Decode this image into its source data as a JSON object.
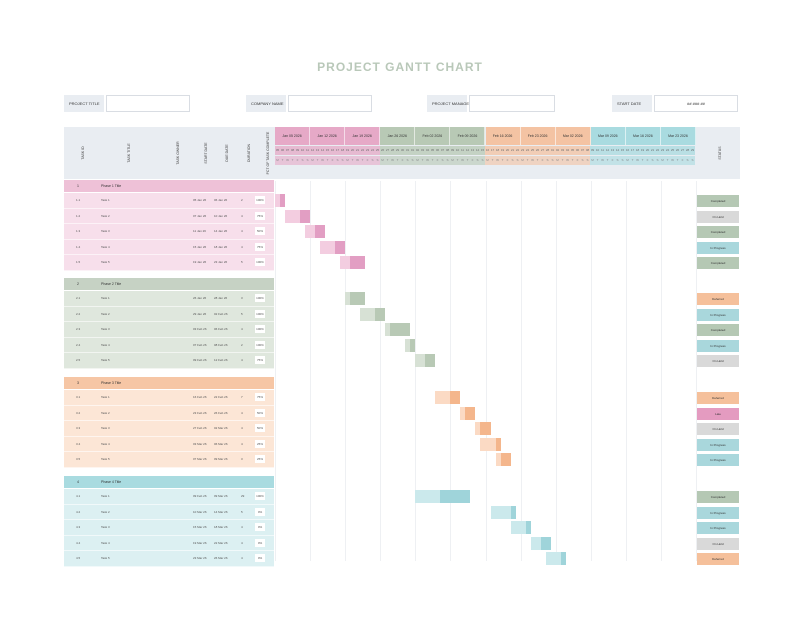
{
  "title": "PROJECT GANTT CHART",
  "info": [
    {
      "label": "PROJECT TITLE",
      "value": ""
    },
    {
      "label": "COMPANY NAME",
      "value": ""
    },
    {
      "label": "PROJECT MANAGER",
      "value": ""
    },
    {
      "label": "START DATE",
      "value": "## ### ##"
    }
  ],
  "columns": [
    "TASK ID",
    "TASK TITLE",
    "TASK OWNER",
    "START DATE",
    "DUE DATE",
    "DURATION",
    "PCT OF TASK COMPLETE"
  ],
  "status_header": "STATUS",
  "weeks": [
    {
      "label": "Jan 05 2026",
      "color": "#e6a9c7"
    },
    {
      "label": "Jan 12 2026",
      "color": "#e6a9c7"
    },
    {
      "label": "Jan 19 2026",
      "color": "#e6a9c7"
    },
    {
      "label": "Jan 26 2026",
      "color": "#b8c9b5"
    },
    {
      "label": "Feb 02 2026",
      "color": "#b8c9b5"
    },
    {
      "label": "Feb 09 2026",
      "color": "#b8c9b5"
    },
    {
      "label": "Feb 16 2026",
      "color": "#f4c3a3"
    },
    {
      "label": "Feb 23 2026",
      "color": "#f4c3a3"
    },
    {
      "label": "Mar 02 2026",
      "color": "#f4c3a3"
    },
    {
      "label": "Mar 09 2026",
      "color": "#a9dbe0"
    },
    {
      "label": "Mar 16 2026",
      "color": "#a9dbe0"
    },
    {
      "label": "Mar 23 2026",
      "color": "#a9dbe0"
    }
  ],
  "day_numbers": [
    "05",
    "06",
    "07",
    "08",
    "09",
    "10",
    "11",
    "12",
    "13",
    "14",
    "15",
    "16",
    "17",
    "18",
    "19",
    "20",
    "21",
    "22",
    "23",
    "24",
    "25",
    "26",
    "27",
    "28",
    "29",
    "30",
    "31",
    "01",
    "02",
    "03",
    "04",
    "05",
    "06",
    "07",
    "08",
    "09",
    "10",
    "11",
    "12",
    "13",
    "14",
    "15",
    "16",
    "17",
    "18",
    "19",
    "20",
    "21",
    "22",
    "23",
    "24",
    "25",
    "26",
    "27",
    "28",
    "01",
    "02",
    "03",
    "04",
    "05",
    "06",
    "07",
    "08",
    "09",
    "10",
    "11",
    "12",
    "13",
    "14",
    "15",
    "16",
    "17",
    "18",
    "19",
    "20",
    "21",
    "22",
    "23",
    "24",
    "25",
    "26",
    "27",
    "28",
    "29"
  ],
  "day_letters": [
    "M",
    "T",
    "W",
    "T",
    "F",
    "S",
    "S",
    "M",
    "T",
    "W",
    "T",
    "F",
    "S",
    "S",
    "M",
    "T",
    "W",
    "T",
    "F",
    "S",
    "S",
    "M",
    "T",
    "W",
    "T",
    "F",
    "S",
    "S",
    "M",
    "T",
    "W",
    "T",
    "F",
    "S",
    "S",
    "M",
    "T",
    "W",
    "T",
    "F",
    "S",
    "S",
    "M",
    "T",
    "W",
    "T",
    "F",
    "S",
    "S",
    "M",
    "T",
    "W",
    "T",
    "F",
    "S",
    "S",
    "M",
    "T",
    "W",
    "T",
    "F",
    "S",
    "S",
    "M",
    "T",
    "W",
    "T",
    "F",
    "S",
    "S",
    "M",
    "T",
    "W",
    "T",
    "F",
    "S",
    "S",
    "M",
    "T",
    "W",
    "T",
    "F",
    "S",
    "S"
  ],
  "phases": [
    {
      "num": "1",
      "title": "Phase 1 Title",
      "header_color": "#eec1d7",
      "row_color": "#f7dfeb",
      "bar_light": "#f3cde0",
      "bar_dark": "#e29ec3",
      "tasks": [
        {
          "id": "1.1",
          "title": "Task 1",
          "start": "05 Jan 26",
          "due": "06 Jan 26",
          "dur": "2",
          "pct": "100%",
          "status": "Completed",
          "status_color": "#b5c8b4",
          "bar_start": 0,
          "bar_light": 1,
          "bar_dark": 1
        },
        {
          "id": "1.2",
          "title": "Task 2",
          "start": "07 Jan 26",
          "due": "10 Jan 26",
          "dur": "4",
          "pct": "75%",
          "status": "On Hold",
          "status_color": "#d9d9d9",
          "bar_start": 2,
          "bar_light": 3,
          "bar_dark": 2
        },
        {
          "id": "1.3",
          "title": "Task 3",
          "start": "11 Jan 26",
          "due": "14 Jan 26",
          "dur": "4",
          "pct": "50%",
          "status": "Completed",
          "status_color": "#b5c8b4",
          "bar_start": 6,
          "bar_light": 2,
          "bar_dark": 2
        },
        {
          "id": "1.4",
          "title": "Task 4",
          "start": "15 Jan 26",
          "due": "18 Jan 26",
          "dur": "4",
          "pct": "75%",
          "status": "In Progress",
          "status_color": "#a9d7dc",
          "bar_start": 9,
          "bar_light": 3,
          "bar_dark": 2
        },
        {
          "id": "1.5",
          "title": "Task 5",
          "start": "19 Jan 26",
          "due": "23 Jan 26",
          "dur": "5",
          "pct": "100%",
          "status": "Completed",
          "status_color": "#b5c8b4",
          "bar_start": 13,
          "bar_light": 2,
          "bar_dark": 3
        }
      ]
    },
    {
      "num": "2",
      "title": "Phase 2 Title",
      "header_color": "#c6d2c4",
      "row_color": "#dfe7dd",
      "bar_light": "#d7e1d5",
      "bar_dark": "#b8c9b5",
      "tasks": [
        {
          "id": "2.1",
          "title": "Task 1",
          "start": "26 Jan 26",
          "due": "28 Jan 26",
          "dur": "3",
          "pct": "100%",
          "status": "Deferred",
          "status_color": "#f5c09b",
          "bar_start": 14,
          "bar_light": 1,
          "bar_dark": 3
        },
        {
          "id": "2.2",
          "title": "Task 2",
          "start": "29 Jan 26",
          "due": "02 Feb 26",
          "dur": "5",
          "pct": "100%",
          "status": "In Progress",
          "status_color": "#a9d7dc",
          "bar_start": 17,
          "bar_light": 3,
          "bar_dark": 2
        },
        {
          "id": "2.3",
          "title": "Task 3",
          "start": "03 Feb 26",
          "due": "06 Feb 26",
          "dur": "4",
          "pct": "100%",
          "status": "Completed",
          "status_color": "#b5c8b4",
          "bar_start": 22,
          "bar_light": 1,
          "bar_dark": 4
        },
        {
          "id": "2.4",
          "title": "Task 4",
          "start": "07 Feb 26",
          "due": "08 Feb 26",
          "dur": "2",
          "pct": "100%",
          "status": "In Progress",
          "status_color": "#a9d7dc",
          "bar_start": 26,
          "bar_light": 1,
          "bar_dark": 1
        },
        {
          "id": "2.5",
          "title": "Task 5",
          "start": "09 Feb 26",
          "due": "12 Feb 26",
          "dur": "4",
          "pct": "75%",
          "status": "On Hold",
          "status_color": "#d9d9d9",
          "bar_start": 28,
          "bar_light": 2,
          "bar_dark": 2
        }
      ]
    },
    {
      "num": "3",
      "title": "Phase 3 Title",
      "header_color": "#f6c6a5",
      "row_color": "#fce6d6",
      "bar_light": "#fbdac4",
      "bar_dark": "#f4b68c",
      "tasks": [
        {
          "id": "3.1",
          "title": "Task 1",
          "start": "16 Feb 26",
          "due": "22 Feb 26",
          "dur": "7",
          "pct": "75%",
          "status": "Deferred",
          "status_color": "#f5c09b",
          "bar_start": 32,
          "bar_light": 3,
          "bar_dark": 2
        },
        {
          "id": "3.2",
          "title": "Task 2",
          "start": "23 Feb 26",
          "due": "26 Feb 26",
          "dur": "4",
          "pct": "50%",
          "status": "Late",
          "status_color": "#e49bc0",
          "bar_start": 37,
          "bar_light": 1,
          "bar_dark": 2
        },
        {
          "id": "3.3",
          "title": "Task 3",
          "start": "27 Feb 26",
          "due": "02 Mar 26",
          "dur": "4",
          "pct": "50%",
          "status": "On Hold",
          "status_color": "#d9d9d9",
          "bar_start": 40,
          "bar_light": 1,
          "bar_dark": 2
        },
        {
          "id": "3.4",
          "title": "Task 4",
          "start": "03 Mar 26",
          "due": "06 Mar 26",
          "dur": "4",
          "pct": "25%",
          "status": "In Progress",
          "status_color": "#a9d7dc",
          "bar_start": 41,
          "bar_light": 3,
          "bar_dark": 1
        },
        {
          "id": "3.5",
          "title": "Task 5",
          "start": "07 Mar 26",
          "due": "09 Mar 26",
          "dur": "3",
          "pct": "25%",
          "status": "In Progress",
          "status_color": "#a9d7dc",
          "bar_start": 44,
          "bar_light": 1,
          "bar_dark": 2
        }
      ]
    },
    {
      "num": "4",
      "title": "Phase 4 Title",
      "header_color": "#a9dbe0",
      "row_color": "#dcf0f2",
      "bar_light": "#cbe9ec",
      "bar_dark": "#9fd4da",
      "tasks": [
        {
          "id": "4.1",
          "title": "Task 1",
          "start": "09 Feb 26",
          "due": "09 Mar 26",
          "dur": "29",
          "pct": "100%",
          "status": "Completed",
          "status_color": "#b5c8b4",
          "bar_start": 28,
          "bar_light": 5,
          "bar_dark": 6
        },
        {
          "id": "4.2",
          "title": "Task 2",
          "start": "10 Mar 26",
          "due": "14 Mar 26",
          "dur": "5",
          "pct": "0%",
          "status": "In Progress",
          "status_color": "#a9d7dc",
          "bar_start": 43,
          "bar_light": 4,
          "bar_dark": 1
        },
        {
          "id": "4.3",
          "title": "Task 3",
          "start": "15 Mar 26",
          "due": "18 Mar 26",
          "dur": "4",
          "pct": "0%",
          "status": "In Progress",
          "status_color": "#a9d7dc",
          "bar_start": 47,
          "bar_light": 3,
          "bar_dark": 1
        },
        {
          "id": "4.4",
          "title": "Task 4",
          "start": "19 Mar 26",
          "due": "22 Mar 26",
          "dur": "4",
          "pct": "0%",
          "status": "On Hold",
          "status_color": "#d9d9d9",
          "bar_start": 51,
          "bar_light": 2,
          "bar_dark": 2
        },
        {
          "id": "4.5",
          "title": "Task 5",
          "start": "23 Mar 26",
          "due": "26 Mar 26",
          "dur": "4",
          "pct": "0%",
          "status": "Deferred",
          "status_color": "#f5c09b",
          "bar_start": 54,
          "bar_light": 3,
          "bar_dark": 1
        }
      ]
    }
  ]
}
